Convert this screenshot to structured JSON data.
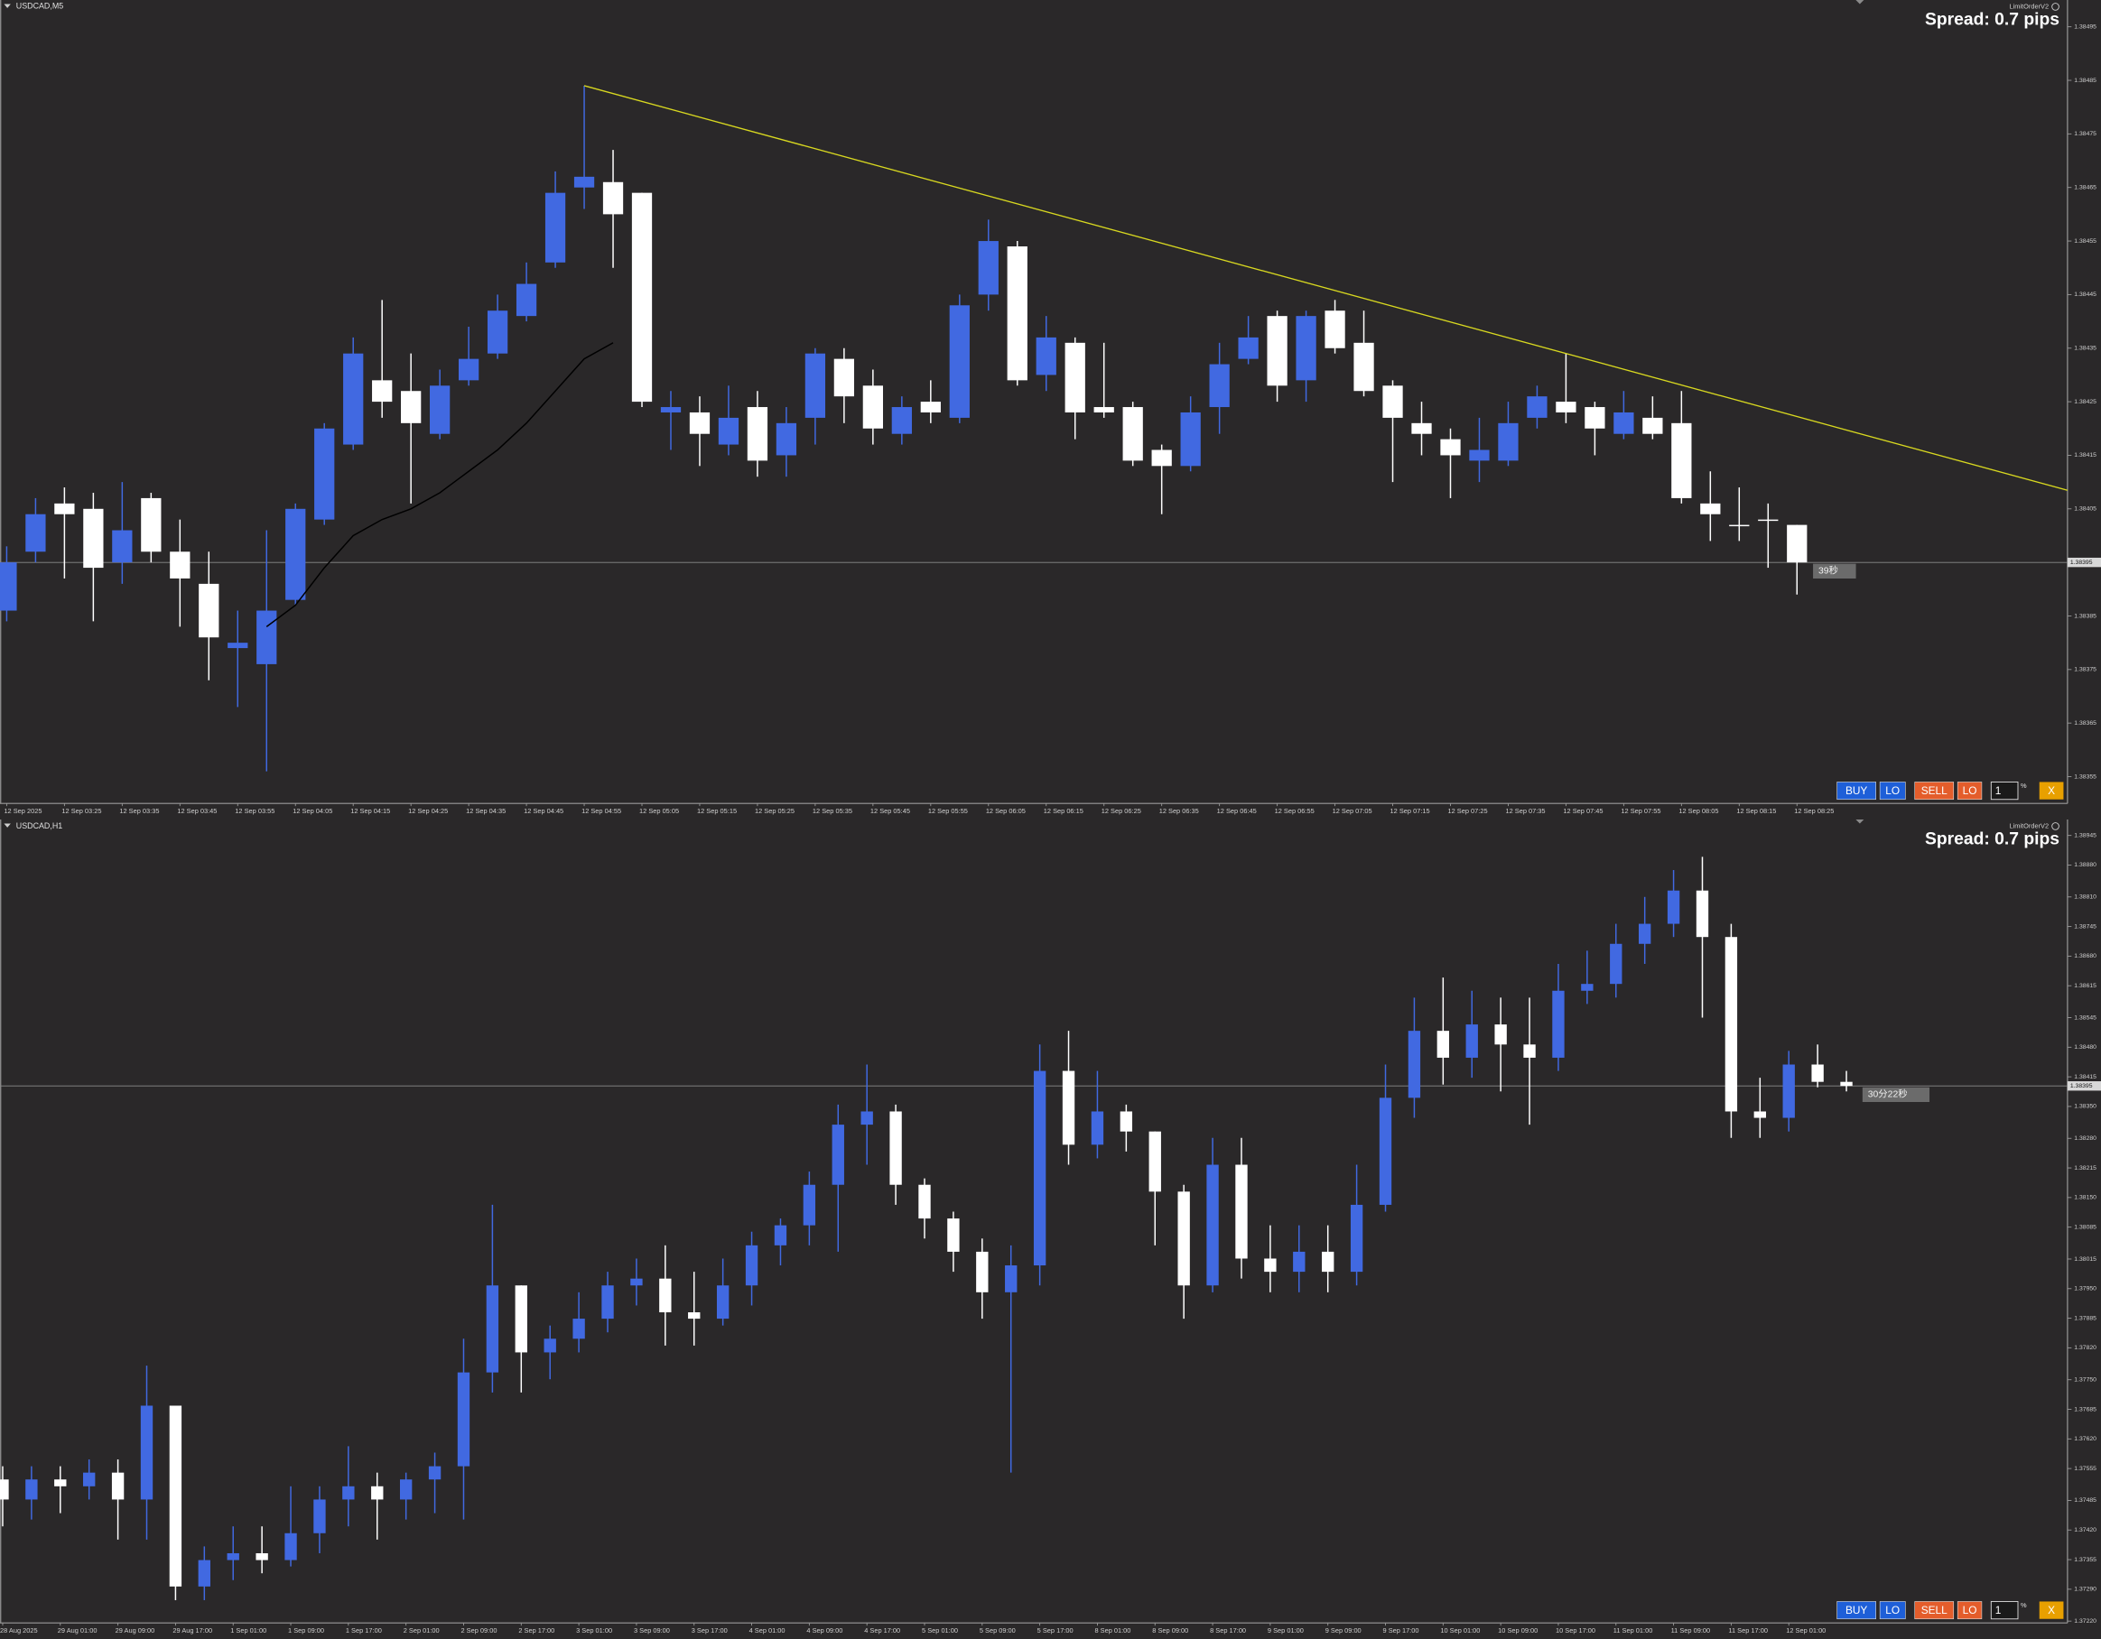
{
  "chart_data": [
    {
      "type": "candlestick",
      "title": "USDCAD,M5",
      "indicator": "LimitOrderV2",
      "spread_label": "Spread: 0.7 pips",
      "countdown": "39秒",
      "categories": [
        "12 Sep 2025",
        null,
        "12 Sep 03:25",
        null,
        "12 Sep 03:35",
        null,
        "12 Sep 03:45",
        null,
        "12 Sep 03:55",
        null,
        "12 Sep 04:05",
        null,
        "12 Sep 04:15",
        null,
        "12 Sep 04:25",
        null,
        "12 Sep 04:35",
        null,
        "12 Sep 04:45",
        null,
        "12 Sep 04:55",
        null,
        "12 Sep 05:05",
        null,
        "12 Sep 05:15",
        null,
        "12 Sep 05:25",
        null,
        "12 Sep 05:35",
        null,
        "12 Sep 05:45",
        null,
        "12 Sep 05:55",
        null,
        "12 Sep 06:05",
        null,
        "12 Sep 06:15",
        null,
        "12 Sep 06:25",
        null,
        "12 Sep 06:35",
        null,
        "12 Sep 06:45",
        null,
        "12 Sep 06:55",
        null,
        "12 Sep 07:05",
        null,
        "12 Sep 07:15",
        null,
        "12 Sep 07:25",
        null,
        "12 Sep 07:35",
        null,
        "12 Sep 07:45",
        null,
        "12 Sep 07:55",
        null,
        "12 Sep 08:05",
        null,
        "12 Sep 08:15",
        null,
        "12 Sep 08:25"
      ],
      "open": [
        1.38386,
        1.38397,
        1.38406,
        1.38405,
        1.38395,
        1.38407,
        1.38397,
        1.38391,
        1.38379,
        1.38376,
        1.38388,
        1.38403,
        1.38417,
        1.38429,
        1.38427,
        1.38419,
        1.38429,
        1.38434,
        1.38441,
        1.38451,
        1.38465,
        1.38466,
        1.38464,
        1.38423,
        1.38423,
        1.38417,
        1.38424,
        1.38415,
        1.38422,
        1.38433,
        1.38428,
        1.38419,
        1.38425,
        1.38422,
        1.38445,
        1.38454,
        1.3843,
        1.38436,
        1.38424,
        1.38424,
        1.38416,
        1.38413,
        1.38424,
        1.38433,
        1.38441,
        1.38429,
        1.38442,
        1.38436,
        1.38428,
        1.38421,
        1.38418,
        1.38414,
        1.38414,
        1.38422,
        1.38425,
        1.38424,
        1.38419,
        1.38422,
        1.38421,
        1.38406,
        1.38402,
        1.38403,
        1.38402
      ],
      "high": [
        1.38398,
        1.38407,
        1.38409,
        1.38408,
        1.3841,
        1.38408,
        1.38403,
        1.38397,
        1.38386,
        1.38401,
        1.38406,
        1.38421,
        1.38437,
        1.38444,
        1.38434,
        1.38431,
        1.38439,
        1.38445,
        1.38451,
        1.38468,
        1.38484,
        1.38472,
        1.38464,
        1.38427,
        1.38426,
        1.38428,
        1.38427,
        1.38424,
        1.38435,
        1.38435,
        1.38431,
        1.38426,
        1.38429,
        1.38445,
        1.38459,
        1.38455,
        1.38441,
        1.38437,
        1.38436,
        1.38425,
        1.38417,
        1.38426,
        1.38436,
        1.38441,
        1.38442,
        1.38442,
        1.38444,
        1.38442,
        1.38429,
        1.38425,
        1.3842,
        1.38422,
        1.38425,
        1.38428,
        1.38434,
        1.38425,
        1.38427,
        1.38426,
        1.38427,
        1.38412,
        1.38409,
        1.38406,
        1.38402
      ],
      "low": [
        1.38384,
        1.38395,
        1.38392,
        1.38384,
        1.38391,
        1.38395,
        1.38383,
        1.38373,
        1.38368,
        1.38356,
        1.38387,
        1.38402,
        1.38416,
        1.38422,
        1.38406,
        1.38418,
        1.38428,
        1.38433,
        1.3844,
        1.3845,
        1.38461,
        1.3845,
        1.38424,
        1.38416,
        1.38413,
        1.38415,
        1.38411,
        1.38411,
        1.38417,
        1.38421,
        1.38417,
        1.38417,
        1.38421,
        1.38421,
        1.38442,
        1.38428,
        1.38427,
        1.38418,
        1.38422,
        1.38413,
        1.38404,
        1.38412,
        1.38419,
        1.38432,
        1.38425,
        1.38425,
        1.38434,
        1.38426,
        1.3841,
        1.38415,
        1.38407,
        1.3841,
        1.38413,
        1.3842,
        1.38421,
        1.38415,
        1.38418,
        1.38418,
        1.38406,
        1.38399,
        1.38399,
        1.38394,
        1.38389
      ],
      "close": [
        1.38395,
        1.38404,
        1.38404,
        1.38394,
        1.38401,
        1.38397,
        1.38392,
        1.38381,
        1.3838,
        1.38386,
        1.38405,
        1.3842,
        1.38434,
        1.38425,
        1.38421,
        1.38428,
        1.38433,
        1.38442,
        1.38447,
        1.38464,
        1.38467,
        1.3846,
        1.38425,
        1.38424,
        1.38419,
        1.38422,
        1.38414,
        1.38421,
        1.38434,
        1.38426,
        1.3842,
        1.38424,
        1.38423,
        1.38443,
        1.38455,
        1.38429,
        1.38437,
        1.38423,
        1.38423,
        1.38414,
        1.38413,
        1.38423,
        1.38432,
        1.38437,
        1.38428,
        1.38441,
        1.38435,
        1.38427,
        1.38422,
        1.38419,
        1.38415,
        1.38416,
        1.38421,
        1.38426,
        1.38423,
        1.3842,
        1.38423,
        1.38419,
        1.38407,
        1.38404,
        1.38402,
        1.38403,
        1.38395
      ],
      "ma": [
        null,
        null,
        null,
        null,
        null,
        null,
        null,
        null,
        null,
        1.38383,
        1.38387,
        1.38394,
        1.384,
        1.38403,
        1.38405,
        1.38408,
        1.38412,
        1.38416,
        1.38421,
        1.38427,
        1.38433,
        1.38436,
        null,
        null,
        null,
        null,
        null,
        null,
        null,
        null,
        null,
        null,
        null,
        null,
        null,
        null,
        null,
        null,
        null,
        null,
        null,
        null,
        null,
        null,
        null,
        null,
        null,
        null,
        null,
        null,
        null,
        null,
        null,
        null,
        null,
        null,
        null,
        null,
        null,
        null,
        null,
        null,
        null
      ],
      "trendline": [
        [
          20,
          1.38484
        ],
        [
          54,
          1.38434
        ]
      ],
      "current_price": 1.38395,
      "ylim": [
        1.3835,
        1.385
      ],
      "yticks": [
        1.38495,
        1.38485,
        1.38475,
        1.38465,
        1.38455,
        1.38445,
        1.38435,
        1.38425,
        1.38415,
        1.38405,
        1.38395,
        1.38385,
        1.38375,
        1.38365,
        1.38355
      ],
      "up_color": "#4169e1",
      "down_color": "#ffffff",
      "ma_color": "#000000",
      "trendline_color": "#d8d820",
      "buttons": [
        "BUY",
        "LO",
        "SELL",
        "LO"
      ],
      "lot": 1,
      "lot_unit": "%",
      "close_button": "X"
    },
    {
      "type": "candlestick",
      "title": "USDCAD,H1",
      "indicator": "LimitOrderV2",
      "spread_label": "Spread: 0.7 pips",
      "countdown": "30分22秒",
      "categories": [
        "28 Aug 2025",
        null,
        "29 Aug 01:00",
        null,
        "29 Aug 09:00",
        null,
        "29 Aug 17:00",
        null,
        "1 Sep 01:00",
        null,
        "1 Sep 09:00",
        null,
        "1 Sep 17:00",
        null,
        "2 Sep 01:00",
        null,
        "2 Sep 09:00",
        null,
        "2 Sep 17:00",
        null,
        "3 Sep 01:00",
        null,
        "3 Sep 09:00",
        null,
        "3 Sep 17:00",
        null,
        "4 Sep 01:00",
        null,
        "4 Sep 09:00",
        null,
        "4 Sep 17:00",
        null,
        "5 Sep 01:00",
        null,
        "5 Sep 09:00",
        null,
        "5 Sep 17:00",
        null,
        "8 Sep 01:00",
        null,
        "8 Sep 09:00",
        null,
        "8 Sep 17:00",
        null,
        "9 Sep 01:00",
        null,
        "9 Sep 09:00",
        null,
        "9 Sep 17:00",
        null,
        "10 Sep 01:00",
        null,
        "10 Sep 09:00",
        null,
        "10 Sep 17:00",
        null,
        "11 Sep 01:00",
        null,
        "11 Sep 09:00",
        null,
        "11 Sep 17:00",
        null,
        "12 Sep 01:00",
        null,
        null
      ],
      "open": [
        1.37531,
        1.37487,
        1.37531,
        1.37516,
        1.37546,
        1.37487,
        1.37693,
        1.37296,
        1.37354,
        1.37369,
        1.37354,
        1.37413,
        1.37487,
        1.37516,
        1.37487,
        1.37531,
        1.3756,
        1.37766,
        1.37957,
        1.3781,
        1.3784,
        1.37884,
        1.37957,
        1.37972,
        1.37898,
        1.37884,
        1.37957,
        1.38045,
        1.38089,
        1.38178,
        1.3831,
        1.38339,
        1.38178,
        1.38104,
        1.38031,
        1.37942,
        1.38001,
        1.38428,
        1.38266,
        1.38339,
        1.38295,
        1.38163,
        1.37957,
        1.38222,
        1.38016,
        1.37987,
        1.38031,
        1.37987,
        1.38134,
        1.38369,
        1.38516,
        1.38457,
        1.3853,
        1.38486,
        1.38457,
        1.38604,
        1.38619,
        1.38707,
        1.38751,
        1.38824,
        1.38722,
        1.38339,
        1.38325,
        1.38442,
        1.38404
      ],
      "high": [
        1.3756,
        1.3756,
        1.3756,
        1.37575,
        1.37575,
        1.37781,
        1.37693,
        1.37384,
        1.37428,
        1.37428,
        1.37516,
        1.37516,
        1.37604,
        1.37546,
        1.37546,
        1.3759,
        1.3784,
        1.38134,
        1.37957,
        1.37869,
        1.37942,
        1.37987,
        1.38016,
        1.38045,
        1.37987,
        1.38016,
        1.38075,
        1.38104,
        1.38207,
        1.38354,
        1.38442,
        1.38354,
        1.38192,
        1.38119,
        1.3806,
        1.38045,
        1.38486,
        1.38516,
        1.38428,
        1.38354,
        1.38295,
        1.38178,
        1.38281,
        1.38281,
        1.38089,
        1.38089,
        1.38089,
        1.38222,
        1.38442,
        1.38589,
        1.38633,
        1.38604,
        1.38589,
        1.38589,
        1.38663,
        1.38692,
        1.38751,
        1.3881,
        1.38869,
        1.38898,
        1.38751,
        1.38413,
        1.38472,
        1.38486,
        1.38428
      ],
      "low": [
        1.37428,
        1.37443,
        1.37457,
        1.37487,
        1.37399,
        1.37399,
        1.37266,
        1.37266,
        1.3731,
        1.37325,
        1.3734,
        1.37369,
        1.37428,
        1.37399,
        1.37443,
        1.37457,
        1.37443,
        1.37722,
        1.37722,
        1.37751,
        1.3781,
        1.37854,
        1.37913,
        1.37825,
        1.37825,
        1.37869,
        1.37913,
        1.38001,
        1.38045,
        1.38031,
        1.38222,
        1.38134,
        1.3806,
        1.37987,
        1.37884,
        1.37546,
        1.37957,
        1.38222,
        1.38236,
        1.38251,
        1.38045,
        1.37884,
        1.37942,
        1.37972,
        1.37942,
        1.37942,
        1.37942,
        1.37957,
        1.38119,
        1.38325,
        1.38398,
        1.38413,
        1.38383,
        1.3831,
        1.38428,
        1.38575,
        1.38589,
        1.38663,
        1.38722,
        1.38545,
        1.38281,
        1.38281,
        1.38295,
        1.38392,
        1.38383
      ],
      "close": [
        1.37487,
        1.37531,
        1.37516,
        1.37546,
        1.37487,
        1.37693,
        1.37296,
        1.37354,
        1.37369,
        1.37354,
        1.37413,
        1.37487,
        1.37516,
        1.37487,
        1.37531,
        1.3756,
        1.37766,
        1.37957,
        1.3781,
        1.3784,
        1.37884,
        1.37957,
        1.37972,
        1.37898,
        1.37884,
        1.37957,
        1.38045,
        1.38089,
        1.38178,
        1.3831,
        1.38339,
        1.38178,
        1.38104,
        1.38031,
        1.37942,
        1.38001,
        1.38428,
        1.38266,
        1.38339,
        1.38295,
        1.38163,
        1.37957,
        1.38222,
        1.38016,
        1.37987,
        1.38031,
        1.37987,
        1.38134,
        1.38369,
        1.38516,
        1.38457,
        1.3853,
        1.38486,
        1.38457,
        1.38604,
        1.38619,
        1.38707,
        1.38751,
        1.38824,
        1.38722,
        1.38339,
        1.38325,
        1.38442,
        1.38404,
        1.38395
      ],
      "current_price": 1.38395,
      "ylim": [
        1.37216,
        1.3898
      ],
      "yticks": [
        1.38945,
        {
          "value": 1.3888,
          "label": "1.38880"
        },
        {
          "value": 1.3881,
          "label": "1.38810"
        },
        1.38745,
        {
          "value": 1.3868,
          "label": "1.38680"
        },
        1.38615,
        1.38545,
        {
          "value": 1.3848,
          "label": "1.38480"
        },
        1.38415,
        {
          "value": 1.3835,
          "label": "1.38350"
        },
        {
          "value": 1.3828,
          "label": "1.38280"
        },
        1.38215,
        {
          "value": 1.3815,
          "label": "1.38150"
        },
        1.38085,
        1.38015,
        {
          "value": 1.3795,
          "label": "1.37950"
        },
        1.37885,
        {
          "value": 1.3782,
          "label": "1.37820"
        },
        {
          "value": 1.3775,
          "label": "1.37750"
        },
        1.37685,
        {
          "value": 1.3762,
          "label": "1.37620"
        },
        1.37555,
        1.37485,
        {
          "value": 1.3742,
          "label": "1.37420"
        },
        1.37355,
        {
          "value": 1.3729,
          "label": "1.37290"
        },
        {
          "value": 1.3722,
          "label": "1.37220"
        }
      ],
      "up_color": "#4169e1",
      "down_color": "#ffffff",
      "buttons": [
        "BUY",
        "LO",
        "SELL",
        "LO"
      ],
      "lot": 1,
      "lot_unit": "%",
      "close_button": "X"
    }
  ]
}
